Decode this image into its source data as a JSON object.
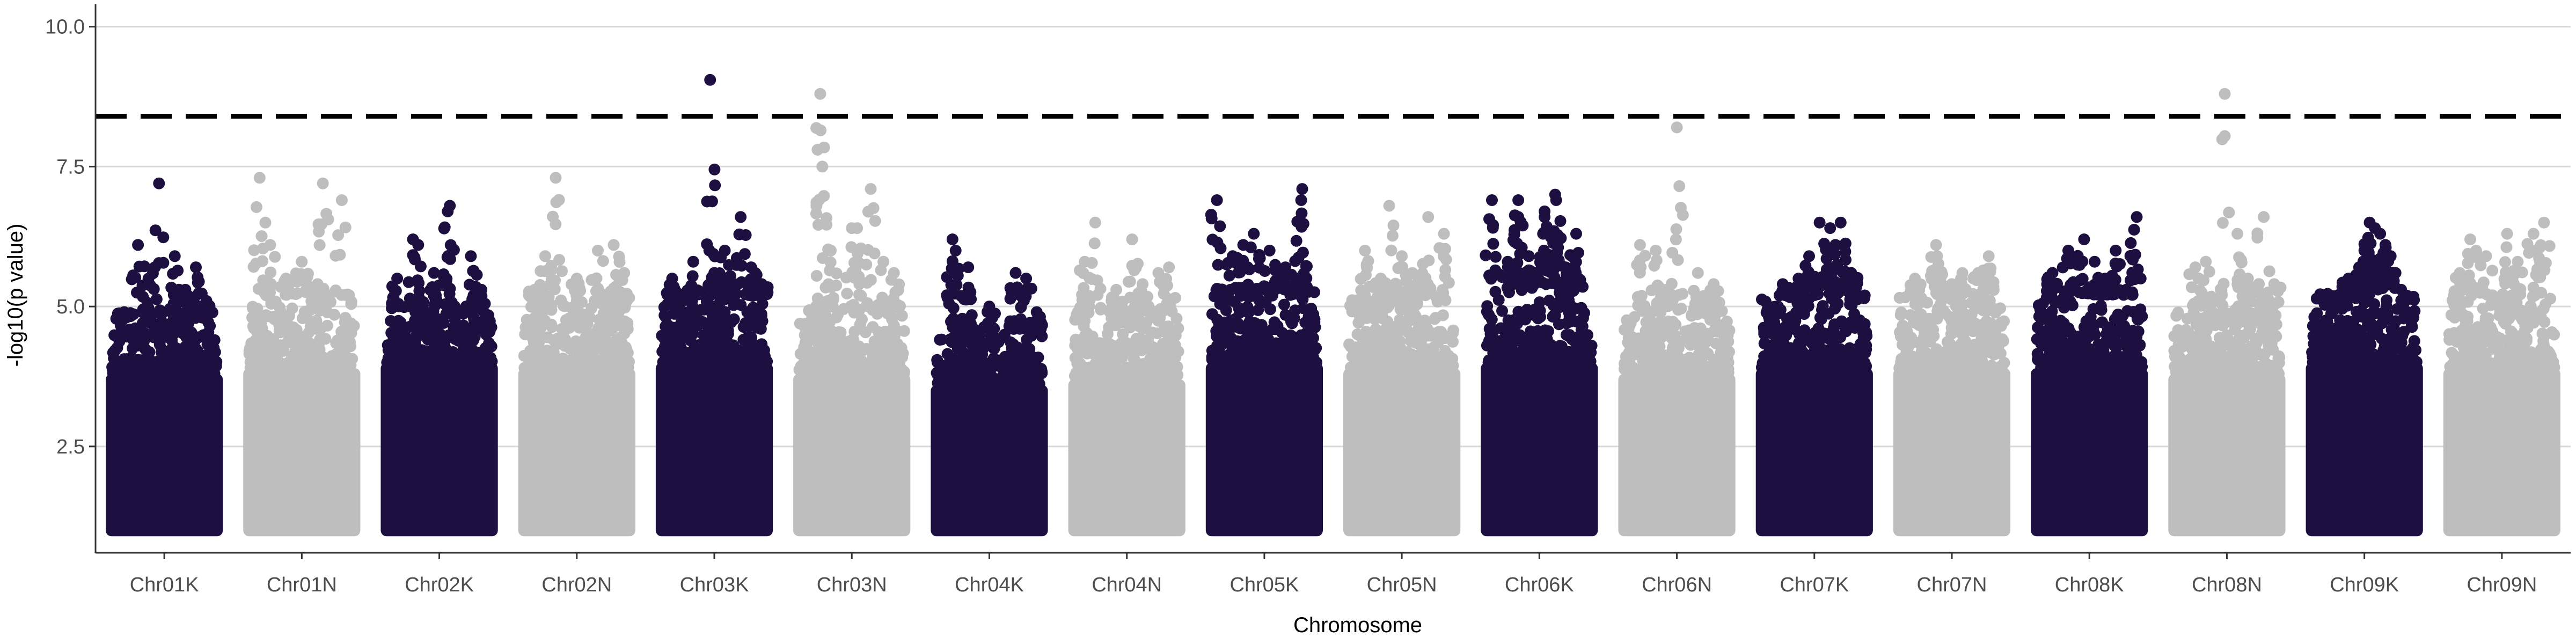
{
  "chart_data": {
    "type": "scatter",
    "title": "",
    "xlabel": "Chromosome",
    "ylabel": "-log10(p value)",
    "ylim": [
      0.6,
      10.4
    ],
    "yticks": [
      2.5,
      5.0,
      7.5,
      10.0
    ],
    "ytick_labels": [
      "2.5",
      "5.0",
      "7.5",
      "10.0"
    ],
    "grid": "horizontal major only",
    "legend": "none",
    "threshold": {
      "value": 8.4,
      "style": "dashed",
      "color": "#000000"
    },
    "colors": {
      "dark": "#1d1040",
      "light": "#bebebe"
    },
    "baseline_min": 1.0,
    "categories": [
      "Chr01K",
      "Chr01N",
      "Chr02K",
      "Chr02N",
      "Chr03K",
      "Chr03N",
      "Chr04K",
      "Chr04N",
      "Chr05K",
      "Chr05N",
      "Chr06K",
      "Chr06N",
      "Chr07K",
      "Chr07N",
      "Chr08K",
      "Chr08N",
      "Chr09K",
      "Chr09N"
    ],
    "series": [
      {
        "category": "Chr01K",
        "color": "dark",
        "dense_top": 3.8,
        "cloud_max": 4.8,
        "peaks": [
          [
            0.45,
            7.2
          ],
          [
            0.25,
            6.1
          ],
          [
            0.6,
            5.9
          ],
          [
            0.12,
            4.9
          ],
          [
            0.8,
            5.7
          ],
          [
            0.35,
            5.5
          ],
          [
            0.7,
            5.3
          ],
          [
            0.9,
            5.1
          ]
        ]
      },
      {
        "category": "Chr01N",
        "color": "light",
        "dense_top": 3.9,
        "cloud_max": 5.2,
        "peaks": [
          [
            0.1,
            7.3
          ],
          [
            0.7,
            7.2
          ],
          [
            0.88,
            6.9
          ],
          [
            0.2,
            6.1
          ],
          [
            0.5,
            5.8
          ],
          [
            0.35,
            5.5
          ],
          [
            0.65,
            5.4
          ],
          [
            0.95,
            5.2
          ]
        ]
      },
      {
        "category": "Chr02K",
        "color": "dark",
        "dense_top": 4.0,
        "cloud_max": 5.0,
        "peaks": [
          [
            0.6,
            6.8
          ],
          [
            0.58,
            6.7
          ],
          [
            0.25,
            6.2
          ],
          [
            0.3,
            6.1
          ],
          [
            0.8,
            5.9
          ],
          [
            0.45,
            5.6
          ],
          [
            0.1,
            5.5
          ],
          [
            0.9,
            5.3
          ]
        ]
      },
      {
        "category": "Chr02N",
        "color": "light",
        "dense_top": 3.9,
        "cloud_max": 5.1,
        "peaks": [
          [
            0.3,
            7.3
          ],
          [
            0.2,
            5.9
          ],
          [
            0.85,
            6.1
          ],
          [
            0.7,
            6.0
          ],
          [
            0.5,
            5.5
          ],
          [
            0.1,
            5.3
          ],
          [
            0.95,
            5.6
          ]
        ]
      },
      {
        "category": "Chr03K",
        "color": "dark",
        "dense_top": 4.0,
        "cloud_max": 5.2,
        "peaks": [
          [
            0.46,
            9.05
          ],
          [
            0.75,
            6.6
          ],
          [
            0.6,
            6.0
          ],
          [
            0.3,
            5.8
          ],
          [
            0.85,
            5.7
          ],
          [
            0.1,
            5.5
          ],
          [
            0.5,
            5.6
          ],
          [
            0.95,
            5.4
          ]
        ]
      },
      {
        "category": "Chr03N",
        "color": "light",
        "dense_top": 3.8,
        "cloud_max": 5.0,
        "peaks": [
          [
            0.2,
            8.8
          ],
          [
            0.22,
            7.5
          ],
          [
            0.68,
            7.1
          ],
          [
            0.5,
            6.4
          ],
          [
            0.55,
            6.4
          ],
          [
            0.3,
            6.0
          ],
          [
            0.8,
            5.8
          ],
          [
            0.9,
            5.6
          ]
        ]
      },
      {
        "category": "Chr04K",
        "color": "dark",
        "dense_top": 3.6,
        "cloud_max": 4.6,
        "peaks": [
          [
            0.15,
            6.2
          ],
          [
            0.18,
            6.0
          ],
          [
            0.3,
            5.7
          ],
          [
            0.75,
            5.6
          ],
          [
            0.85,
            5.5
          ],
          [
            0.5,
            5.0
          ],
          [
            0.95,
            4.9
          ]
        ]
      },
      {
        "category": "Chr04N",
        "color": "light",
        "dense_top": 3.7,
        "cloud_max": 4.9,
        "peaks": [
          [
            0.2,
            6.5
          ],
          [
            0.55,
            6.2
          ],
          [
            0.8,
            5.6
          ],
          [
            0.9,
            5.7
          ],
          [
            0.1,
            5.8
          ],
          [
            0.4,
            5.3
          ],
          [
            0.65,
            5.4
          ]
        ]
      },
      {
        "category": "Chr05K",
        "color": "dark",
        "dense_top": 4.0,
        "cloud_max": 5.3,
        "peaks": [
          [
            0.05,
            6.9
          ],
          [
            0.86,
            7.1
          ],
          [
            0.85,
            6.9
          ],
          [
            0.4,
            6.3
          ],
          [
            0.55,
            6.0
          ],
          [
            0.3,
            6.1
          ],
          [
            0.2,
            5.9
          ],
          [
            0.7,
            5.7
          ],
          [
            0.65,
            5.6
          ]
        ]
      },
      {
        "category": "Chr05N",
        "color": "light",
        "dense_top": 3.9,
        "cloud_max": 5.2,
        "peaks": [
          [
            0.38,
            6.8
          ],
          [
            0.75,
            6.6
          ],
          [
            0.15,
            6.0
          ],
          [
            0.5,
            5.9
          ],
          [
            0.9,
            6.3
          ],
          [
            0.6,
            5.6
          ],
          [
            0.3,
            5.5
          ]
        ]
      },
      {
        "category": "Chr06K",
        "color": "dark",
        "dense_top": 4.0,
        "cloud_max": 5.4,
        "peaks": [
          [
            0.05,
            6.9
          ],
          [
            0.3,
            6.9
          ],
          [
            0.3,
            6.6
          ],
          [
            0.65,
            7.0
          ],
          [
            0.66,
            6.9
          ],
          [
            0.55,
            6.7
          ],
          [
            0.55,
            6.6
          ],
          [
            0.85,
            6.3
          ],
          [
            0.4,
            5.9
          ],
          [
            0.2,
            5.8
          ],
          [
            0.75,
            5.7
          ]
        ]
      },
      {
        "category": "Chr06N",
        "color": "light",
        "dense_top": 3.8,
        "cloud_max": 5.0,
        "peaks": [
          [
            0.5,
            8.2
          ],
          [
            0.15,
            6.1
          ],
          [
            0.3,
            6.0
          ],
          [
            0.7,
            5.6
          ],
          [
            0.85,
            5.4
          ],
          [
            0.4,
            5.3
          ]
        ]
      },
      {
        "category": "Chr07K",
        "color": "dark",
        "dense_top": 3.9,
        "cloud_max": 5.2,
        "peaks": [
          [
            0.55,
            6.5
          ],
          [
            0.65,
            6.4
          ],
          [
            0.75,
            6.5
          ],
          [
            0.7,
            6.1
          ],
          [
            0.45,
            5.9
          ],
          [
            0.35,
            5.5
          ],
          [
            0.85,
            5.6
          ],
          [
            0.2,
            5.4
          ]
        ]
      },
      {
        "category": "Chr07N",
        "color": "light",
        "dense_top": 3.9,
        "cloud_max": 5.2,
        "peaks": [
          [
            0.35,
            6.1
          ],
          [
            0.36,
            5.9
          ],
          [
            0.6,
            5.6
          ],
          [
            0.85,
            5.9
          ],
          [
            0.75,
            5.6
          ],
          [
            0.15,
            5.5
          ],
          [
            0.5,
            5.4
          ]
        ]
      },
      {
        "category": "Chr08K",
        "color": "dark",
        "dense_top": 3.9,
        "cloud_max": 5.2,
        "peaks": [
          [
            0.3,
            6.0
          ],
          [
            0.45,
            6.2
          ],
          [
            0.55,
            5.8
          ],
          [
            0.75,
            6.0
          ],
          [
            0.95,
            6.6
          ],
          [
            0.15,
            5.6
          ],
          [
            0.65,
            5.5
          ],
          [
            0.85,
            5.3
          ]
        ]
      },
      {
        "category": "Chr08N",
        "color": "light",
        "dense_top": 3.8,
        "cloud_max": 5.0,
        "peaks": [
          [
            0.48,
            8.8
          ],
          [
            0.85,
            6.6
          ],
          [
            0.6,
            6.3
          ],
          [
            0.3,
            5.8
          ],
          [
            0.2,
            5.7
          ],
          [
            0.7,
            5.5
          ],
          [
            0.95,
            5.4
          ]
        ]
      },
      {
        "category": "Chr09K",
        "color": "dark",
        "dense_top": 4.0,
        "cloud_max": 5.3,
        "peaks": [
          [
            0.55,
            6.5
          ],
          [
            0.6,
            6.4
          ],
          [
            0.65,
            6.3
          ],
          [
            0.7,
            6.1
          ],
          [
            0.5,
            6.0
          ],
          [
            0.75,
            5.9
          ],
          [
            0.45,
            5.7
          ],
          [
            0.35,
            5.5
          ],
          [
            0.85,
            5.3
          ]
        ]
      },
      {
        "category": "Chr09N",
        "color": "light",
        "dense_top": 3.9,
        "cloud_max": 5.2,
        "peaks": [
          [
            0.2,
            6.2
          ],
          [
            0.55,
            6.3
          ],
          [
            0.8,
            6.3
          ],
          [
            0.9,
            6.5
          ],
          [
            0.35,
            5.9
          ],
          [
            0.65,
            5.8
          ],
          [
            0.1,
            5.6
          ]
        ]
      }
    ]
  }
}
